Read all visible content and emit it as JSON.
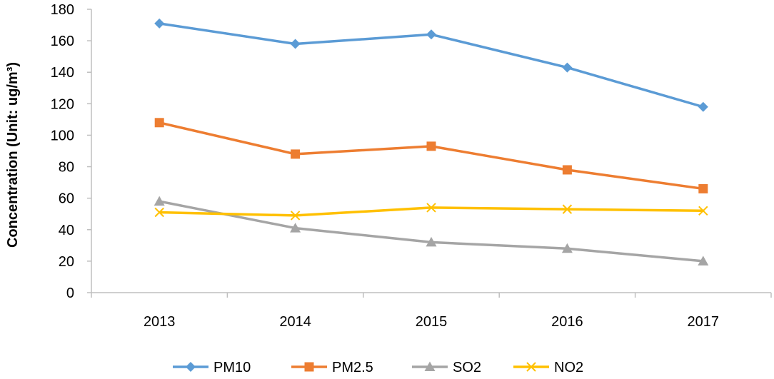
{
  "chart_data": {
    "type": "line",
    "title": "",
    "xlabel": "",
    "ylabel": "Concentration (Unit: ug/m³)",
    "ylim": [
      0,
      180
    ],
    "ytick_step": 20,
    "grid": false,
    "legend_position": "bottom",
    "categories": [
      "2013",
      "2014",
      "2015",
      "2016",
      "2017"
    ],
    "series": [
      {
        "name": "PM10",
        "color": "#5B9BD5",
        "marker": "diamond",
        "values": [
          171,
          158,
          164,
          143,
          118
        ]
      },
      {
        "name": "PM2.5",
        "color": "#ED7D31",
        "marker": "square",
        "values": [
          108,
          88,
          93,
          78,
          66
        ]
      },
      {
        "name": "SO2",
        "color": "#A5A5A5",
        "marker": "triangle",
        "values": [
          58,
          41,
          32,
          28,
          20
        ]
      },
      {
        "name": "NO2",
        "color": "#FFC000",
        "marker": "x",
        "values": [
          51,
          49,
          54,
          53,
          52
        ]
      }
    ]
  }
}
